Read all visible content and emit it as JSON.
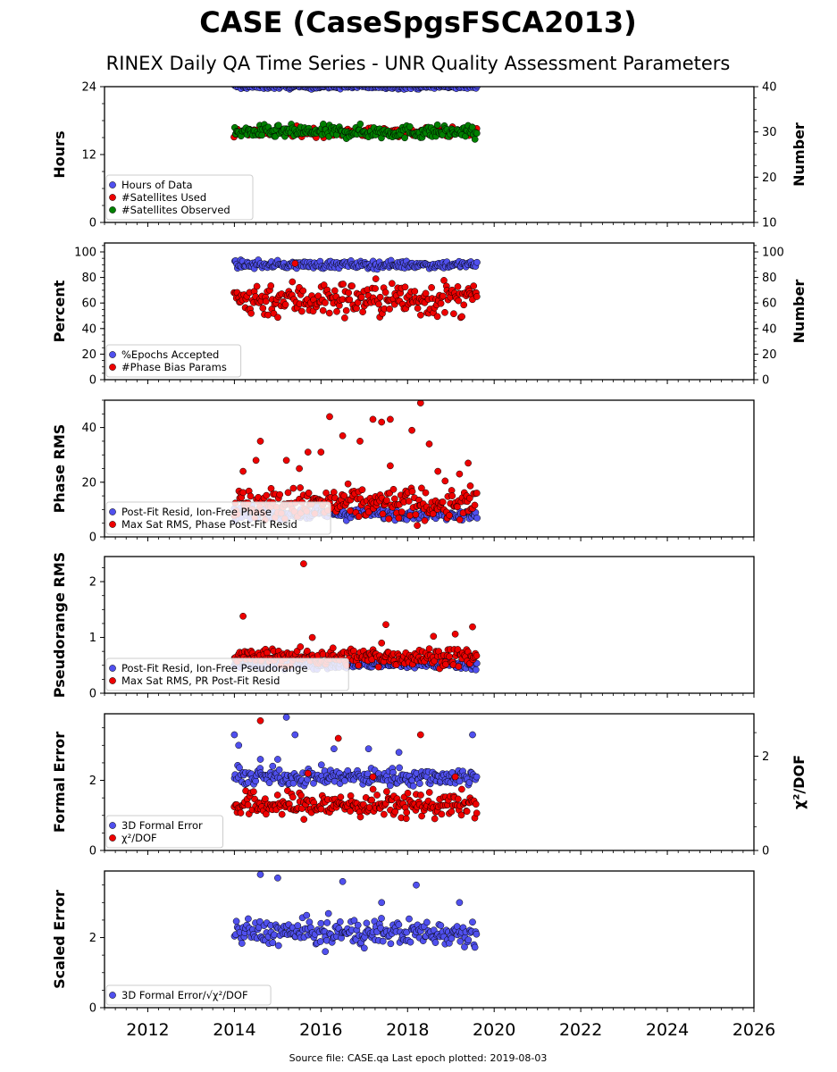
{
  "title": "CASE (CaseSpgsFSCA2013)",
  "subtitle": "RINEX Daily QA Time Series - UNR Quality Assessment Parameters",
  "footer": "Source file: CASE.qa Last epoch plotted: 2019-08-03",
  "x_axis": {
    "range": [
      2011.0,
      2026.0
    ],
    "ticks": [
      2012,
      2014,
      2016,
      2018,
      2020,
      2022,
      2024,
      2026
    ],
    "labels": [
      "2012",
      "2014",
      "2016",
      "2018",
      "2020",
      "2022",
      "2024",
      "2026"
    ]
  },
  "colors": {
    "blue": "#5050ee",
    "red": "#ee0000",
    "green": "#008000"
  },
  "chart_data": [
    {
      "type": "scatter",
      "ylabel": "Hours",
      "ylim": [
        0,
        24
      ],
      "yticks": [
        0,
        12,
        24
      ],
      "yticklabels": [
        "0",
        "12",
        "24"
      ],
      "y2label": "Number",
      "y2lim": [
        10,
        40
      ],
      "y2ticks": [
        10,
        20,
        30,
        40
      ],
      "y2ticklabels": [
        "10",
        "20",
        "30",
        "40"
      ],
      "legend_location": "lower-left",
      "x_span": [
        2014.0,
        2019.6
      ],
      "series": [
        {
          "name": "Hours of Data",
          "color": "blue",
          "axis": "left",
          "typical": 24,
          "spread": 0.2,
          "outliers": []
        },
        {
          "name": "#Satellites Used",
          "color": "red",
          "axis": "right",
          "typical": 30,
          "spread": 0.5,
          "outliers": []
        },
        {
          "name": "#Satellites Observed",
          "color": "green",
          "axis": "right",
          "typical": 30,
          "spread": 0.7,
          "outliers": []
        }
      ]
    },
    {
      "type": "scatter",
      "ylabel": "Percent",
      "ylim": [
        0,
        107
      ],
      "yticks": [
        0,
        20,
        40,
        60,
        80,
        100
      ],
      "yticklabels": [
        "0",
        "20",
        "40",
        "60",
        "80",
        "100"
      ],
      "y2label": "Number",
      "y2lim": [
        0,
        107
      ],
      "y2ticks": [
        0,
        20,
        40,
        60,
        80,
        100
      ],
      "y2ticklabels": [
        "0",
        "20",
        "40",
        "60",
        "80",
        "100"
      ],
      "legend_location": "lower-left",
      "x_span": [
        2014.0,
        2019.6
      ],
      "series": [
        {
          "name": "%Epochs Accepted",
          "color": "blue",
          "axis": "left",
          "typical": 90,
          "spread": 1.5,
          "outliers": []
        },
        {
          "name": "#Phase Bias Params",
          "color": "red",
          "axis": "right",
          "typical": 63,
          "spread": 7,
          "outliers": [
            [
              2015.4,
              91
            ]
          ]
        }
      ]
    },
    {
      "type": "scatter",
      "ylabel": "Phase RMS",
      "ylim": [
        0,
        50
      ],
      "yticks": [
        0,
        20,
        40
      ],
      "yticklabels": [
        "0",
        "20",
        "40"
      ],
      "legend_location": "lower-left",
      "x_span": [
        2014.0,
        2019.6
      ],
      "series": [
        {
          "name": "Post-Fit Resid, Ion-Free Phase",
          "color": "blue",
          "axis": "left",
          "typical": 8.5,
          "spread": 1.0,
          "outliers": []
        },
        {
          "name": "Max Sat RMS, Phase Post-Fit Resid",
          "color": "red",
          "axis": "left",
          "typical": 12,
          "spread": 3,
          "outliers": [
            [
              2014.2,
              24
            ],
            [
              2014.5,
              28
            ],
            [
              2014.6,
              35
            ],
            [
              2015.2,
              28
            ],
            [
              2015.7,
              31
            ],
            [
              2016.2,
              44
            ],
            [
              2016.5,
              37
            ],
            [
              2016.9,
              35
            ],
            [
              2017.2,
              43
            ],
            [
              2017.4,
              42
            ],
            [
              2017.6,
              43
            ],
            [
              2017.6,
              26
            ],
            [
              2018.1,
              39
            ],
            [
              2018.3,
              49
            ],
            [
              2018.5,
              34
            ],
            [
              2018.7,
              24
            ],
            [
              2019.2,
              23
            ],
            [
              2019.4,
              27
            ],
            [
              2015.5,
              25
            ],
            [
              2016.0,
              31
            ]
          ]
        }
      ]
    },
    {
      "type": "scatter",
      "ylabel": "Pseudorange RMS",
      "ylim": [
        0,
        2.45
      ],
      "yticks": [
        0,
        1,
        2
      ],
      "yticklabels": [
        "0",
        "1",
        "2"
      ],
      "legend_location": "lower-left",
      "x_span": [
        2014.0,
        2019.6
      ],
      "series": [
        {
          "name": "Post-Fit Resid, Ion-Free Pseudorange",
          "color": "blue",
          "axis": "left",
          "typical": 0.52,
          "spread": 0.04,
          "outliers": []
        },
        {
          "name": "Max Sat RMS, PR Post-Fit Resid",
          "color": "red",
          "axis": "left",
          "typical": 0.65,
          "spread": 0.08,
          "outliers": [
            [
              2014.2,
              1.38
            ],
            [
              2015.6,
              2.32
            ],
            [
              2015.8,
              1.0
            ],
            [
              2017.5,
              1.23
            ],
            [
              2017.4,
              0.9
            ],
            [
              2018.6,
              1.02
            ],
            [
              2019.1,
              1.06
            ],
            [
              2019.5,
              1.19
            ]
          ]
        }
      ]
    },
    {
      "type": "scatter",
      "ylabel": "Formal Error",
      "ylim": [
        0,
        3.9
      ],
      "yticks": [
        0,
        2
      ],
      "yticklabels": [
        "0",
        "2"
      ],
      "y2label": "χ²/DOF",
      "y2lim": [
        0,
        2.9
      ],
      "y2ticks": [
        0,
        2
      ],
      "y2ticklabels": [
        "0",
        "2"
      ],
      "legend_location": "lower-left",
      "x_span": [
        2014.0,
        2019.6
      ],
      "series": [
        {
          "name": "3D Formal Error",
          "color": "blue",
          "axis": "left",
          "typical": 2.1,
          "spread": 0.12,
          "outliers": [
            [
              2014.0,
              3.3
            ],
            [
              2014.1,
              3.0
            ],
            [
              2015.2,
              3.8
            ],
            [
              2015.4,
              3.3
            ],
            [
              2016.3,
              2.9
            ],
            [
              2017.1,
              2.9
            ],
            [
              2017.8,
              2.8
            ],
            [
              2019.5,
              3.3
            ],
            [
              2014.6,
              2.6
            ],
            [
              2015.0,
              2.6
            ]
          ]
        },
        {
          "name": "χ²/DOF",
          "color": "red",
          "axis": "left",
          "typical": 1.3,
          "spread": 0.18,
          "outliers": [
            [
              2014.6,
              3.7
            ],
            [
              2015.7,
              2.2
            ],
            [
              2016.4,
              3.2
            ],
            [
              2018.3,
              3.3
            ],
            [
              2017.2,
              2.1
            ],
            [
              2019.1,
              2.1
            ]
          ]
        }
      ]
    },
    {
      "type": "scatter",
      "ylabel": "Scaled Error",
      "ylim": [
        0,
        3.9
      ],
      "yticks": [
        0,
        2
      ],
      "yticklabels": [
        "0",
        "2"
      ],
      "legend_location": "lower-left",
      "x_span": [
        2014.0,
        2019.6
      ],
      "series": [
        {
          "name": "3D Formal Error/√χ²/DOF",
          "color": "blue",
          "axis": "left",
          "typical": 2.15,
          "spread": 0.18,
          "outliers": [
            [
              2014.6,
              3.8
            ],
            [
              2015.0,
              3.7
            ],
            [
              2016.5,
              3.6
            ],
            [
              2018.2,
              3.5
            ],
            [
              2017.4,
              3.0
            ],
            [
              2019.2,
              3.0
            ],
            [
              2016.1,
              1.6
            ],
            [
              2017.0,
              1.7
            ]
          ]
        }
      ]
    }
  ]
}
